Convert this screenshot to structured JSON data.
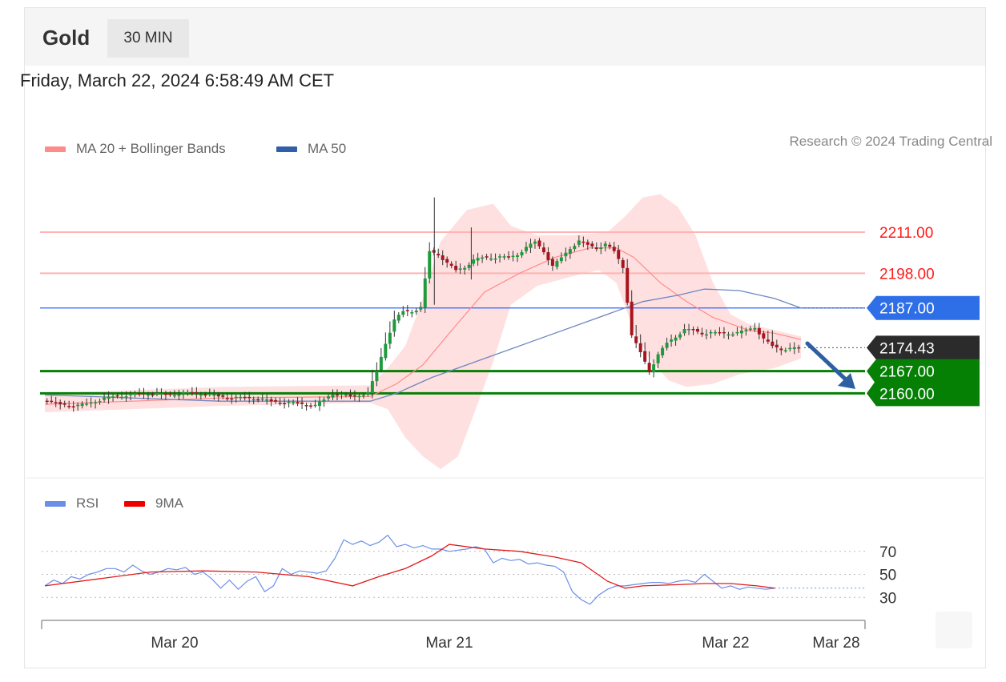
{
  "header": {
    "title": "Gold",
    "timeframe": "30 MIN"
  },
  "timestamp": "Friday, March 22, 2024 6:58:49 AM CET",
  "legend_main": [
    {
      "label": "MA 20 + Bollinger Bands",
      "color": "#ff8a8a"
    },
    {
      "label": "MA 50",
      "color": "#2e5fa8"
    }
  ],
  "copyright": "Research © 2024 Trading Central",
  "legend_rsi": [
    {
      "label": "RSI",
      "color": "#6b8fe8"
    },
    {
      "label": "9MA",
      "color": "#ee0000"
    }
  ],
  "chart_data": [
    {
      "type": "candlestick",
      "y_range": [
        2135,
        2230
      ],
      "x_labels": [
        "Mar 20",
        "Mar 21",
        "Mar 22",
        "Mar 28"
      ],
      "levels": [
        {
          "value": 2211.0,
          "label": "2211.00",
          "kind": "resistance",
          "color": "#ff0000"
        },
        {
          "value": 2198.0,
          "label": "2198.00",
          "kind": "resistance",
          "color": "#ff0000"
        },
        {
          "value": 2187.0,
          "label": "2187.00",
          "kind": "pivot",
          "color": "#2962ff"
        },
        {
          "value": 2174.43,
          "label": "2174.43",
          "kind": "last-price",
          "color": "#333333"
        },
        {
          "value": 2167.0,
          "label": "2167.00",
          "kind": "support",
          "color": "#058005"
        },
        {
          "value": 2160.0,
          "label": "2160.00",
          "kind": "support",
          "color": "#058005"
        }
      ],
      "close_profile": [
        [
          0,
          2158
        ],
        [
          2,
          2156.5
        ],
        [
          4,
          2156
        ],
        [
          6,
          2157.5
        ],
        [
          8,
          2159
        ],
        [
          10,
          2159.5
        ],
        [
          12,
          2160
        ],
        [
          14,
          2159.5
        ],
        [
          16,
          2160
        ],
        [
          18,
          2160
        ],
        [
          20,
          2159
        ],
        [
          22,
          2158.5
        ],
        [
          24,
          2158.5
        ],
        [
          26,
          2157.5
        ],
        [
          28,
          2157
        ],
        [
          30,
          2156.5
        ],
        [
          31,
          2156
        ],
        [
          32,
          2158
        ],
        [
          33,
          2160
        ],
        [
          34,
          2159.5
        ],
        [
          35,
          2159
        ],
        [
          36,
          2159.5
        ],
        [
          37,
          2160
        ],
        [
          38,
          2167
        ],
        [
          39,
          2176
        ],
        [
          40,
          2183
        ],
        [
          41,
          2186
        ],
        [
          42,
          2186
        ],
        [
          43,
          2187
        ],
        [
          44,
          2205
        ],
        [
          45,
          2204
        ],
        [
          46,
          2201
        ],
        [
          47,
          2199
        ],
        [
          48,
          2200
        ],
        [
          49,
          2202
        ],
        [
          50,
          2203
        ],
        [
          51,
          2203
        ],
        [
          52,
          2203
        ],
        [
          53,
          2203
        ],
        [
          54,
          2204
        ],
        [
          55,
          2206
        ],
        [
          56,
          2208
        ],
        [
          57,
          2205
        ],
        [
          58,
          2200
        ],
        [
          59,
          2203
        ],
        [
          60,
          2206
        ],
        [
          61,
          2208
        ],
        [
          62,
          2207
        ],
        [
          63,
          2206
        ],
        [
          64,
          2207
        ],
        [
          65,
          2205
        ],
        [
          66,
          2200
        ],
        [
          67,
          2178
        ],
        [
          68,
          2173
        ],
        [
          69,
          2167
        ],
        [
          70,
          2172
        ],
        [
          71,
          2176
        ],
        [
          72,
          2178
        ],
        [
          73,
          2180
        ],
        [
          74,
          2180
        ],
        [
          75,
          2179
        ],
        [
          76,
          2179
        ],
        [
          77,
          2179
        ],
        [
          78,
          2179
        ],
        [
          79,
          2179
        ],
        [
          80,
          2180
        ],
        [
          81,
          2181
        ],
        [
          82,
          2177
        ],
        [
          83,
          2175
        ],
        [
          84,
          2174
        ],
        [
          85,
          2174
        ],
        [
          86,
          2174.4
        ]
      ],
      "ma50": [
        [
          0,
          2159.5
        ],
        [
          20,
          2157.5
        ],
        [
          37,
          2157.5
        ],
        [
          40,
          2160
        ],
        [
          44,
          2165
        ],
        [
          50,
          2171
        ],
        [
          56,
          2177
        ],
        [
          62,
          2183
        ],
        [
          66,
          2187
        ],
        [
          68,
          2189
        ],
        [
          72,
          2191
        ],
        [
          75,
          2193
        ],
        [
          79,
          2192.5
        ],
        [
          83,
          2190
        ],
        [
          86,
          2187
        ]
      ],
      "ma20": [
        [
          0,
          2156.5
        ],
        [
          20,
          2158.5
        ],
        [
          37,
          2159
        ],
        [
          40,
          2163
        ],
        [
          43,
          2169
        ],
        [
          46,
          2179
        ],
        [
          50,
          2192
        ],
        [
          54,
          2198
        ],
        [
          58,
          2203
        ],
        [
          62,
          2206
        ],
        [
          65,
          2206
        ],
        [
          67,
          2203
        ],
        [
          70,
          2195
        ],
        [
          73,
          2189
        ],
        [
          76,
          2184
        ],
        [
          80,
          2180
        ],
        [
          83,
          2179
        ],
        [
          86,
          2177
        ]
      ],
      "bb_upper": [
        [
          0,
          2160
        ],
        [
          20,
          2162
        ],
        [
          37,
          2162.5
        ],
        [
          39,
          2168
        ],
        [
          41,
          2175
        ],
        [
          43,
          2190
        ],
        [
          45,
          2208
        ],
        [
          48,
          2218
        ],
        [
          51,
          2220
        ],
        [
          53,
          2213
        ],
        [
          56,
          2210
        ],
        [
          60,
          2210
        ],
        [
          64,
          2211
        ],
        [
          66,
          2216
        ],
        [
          68,
          2222
        ],
        [
          70,
          2223
        ],
        [
          72,
          2219
        ],
        [
          74,
          2210
        ],
        [
          76,
          2195
        ],
        [
          78,
          2185
        ],
        [
          80,
          2182
        ],
        [
          83,
          2180
        ],
        [
          86,
          2178
        ]
      ],
      "bb_lower": [
        [
          0,
          2154
        ],
        [
          20,
          2156
        ],
        [
          37,
          2157
        ],
        [
          39,
          2155
        ],
        [
          41,
          2146
        ],
        [
          43,
          2140
        ],
        [
          45,
          2136
        ],
        [
          47,
          2140
        ],
        [
          49,
          2155
        ],
        [
          51,
          2170
        ],
        [
          53,
          2188
        ],
        [
          56,
          2194
        ],
        [
          60,
          2197
        ],
        [
          63,
          2199
        ],
        [
          65,
          2195
        ],
        [
          67,
          2180
        ],
        [
          69,
          2170
        ],
        [
          71,
          2164
        ],
        [
          73,
          2162
        ],
        [
          76,
          2163
        ],
        [
          79,
          2166
        ],
        [
          83,
          2168
        ],
        [
          86,
          2171
        ]
      ]
    },
    {
      "type": "line",
      "title": "RSI",
      "yticks": [
        70,
        50,
        30
      ],
      "y_range": [
        10,
        90
      ],
      "series": [
        {
          "name": "RSI",
          "values": [
            [
              0,
              40
            ],
            [
              1,
              45
            ],
            [
              2,
              42
            ],
            [
              3,
              48
            ],
            [
              4,
              46
            ],
            [
              5,
              50
            ],
            [
              6,
              52
            ],
            [
              7,
              55
            ],
            [
              8,
              55
            ],
            [
              9,
              52
            ],
            [
              10,
              58
            ],
            [
              11,
              53
            ],
            [
              12,
              50
            ],
            [
              13,
              52
            ],
            [
              14,
              55
            ],
            [
              15,
              54
            ],
            [
              16,
              56
            ],
            [
              17,
              50
            ],
            [
              18,
              52
            ],
            [
              19,
              46
            ],
            [
              20,
              38
            ],
            [
              21,
              45
            ],
            [
              22,
              37
            ],
            [
              23,
              44
            ],
            [
              24,
              48
            ],
            [
              25,
              35
            ],
            [
              26,
              40
            ],
            [
              27,
              55
            ],
            [
              28,
              50
            ],
            [
              29,
              53
            ],
            [
              30,
              52
            ],
            [
              31,
              51
            ],
            [
              32,
              53
            ],
            [
              33,
              64
            ],
            [
              34,
              80
            ],
            [
              35,
              76
            ],
            [
              36,
              79
            ],
            [
              37,
              75
            ],
            [
              38,
              78
            ],
            [
              39,
              84
            ],
            [
              40,
              74
            ],
            [
              41,
              76
            ],
            [
              42,
              73
            ],
            [
              43,
              75
            ],
            [
              44,
              72
            ],
            [
              45,
              72
            ],
            [
              46,
              70
            ],
            [
              47,
              71
            ],
            [
              48,
              72
            ],
            [
              49,
              74
            ],
            [
              50,
              72
            ],
            [
              51,
              60
            ],
            [
              52,
              64
            ],
            [
              53,
              62
            ],
            [
              54,
              63
            ],
            [
              55,
              59
            ],
            [
              56,
              60
            ],
            [
              57,
              58
            ],
            [
              58,
              57
            ],
            [
              59,
              52
            ],
            [
              60,
              35
            ],
            [
              61,
              28
            ],
            [
              62,
              24
            ],
            [
              63,
              32
            ],
            [
              64,
              37
            ],
            [
              65,
              40
            ],
            [
              66,
              40
            ],
            [
              67,
              41
            ],
            [
              68,
              42
            ],
            [
              69,
              43
            ],
            [
              70,
              43
            ],
            [
              71,
              42
            ],
            [
              72,
              44
            ],
            [
              73,
              45
            ],
            [
              74,
              43
            ],
            [
              75,
              50
            ],
            [
              76,
              44
            ],
            [
              77,
              38
            ],
            [
              78,
              40
            ],
            [
              79,
              37
            ],
            [
              80,
              39
            ],
            [
              81,
              38
            ],
            [
              82,
              37
            ],
            [
              83,
              38
            ]
          ]
        },
        {
          "name": "9MA",
          "values": [
            [
              0,
              40
            ],
            [
              6,
              46
            ],
            [
              12,
              52
            ],
            [
              18,
              53
            ],
            [
              24,
              52
            ],
            [
              30,
              48
            ],
            [
              35,
              40
            ],
            [
              38,
              48
            ],
            [
              41,
              55
            ],
            [
              44,
              66
            ],
            [
              46,
              76
            ],
            [
              50,
              72
            ],
            [
              54,
              70
            ],
            [
              58,
              65
            ],
            [
              61,
              60
            ],
            [
              64,
              44
            ],
            [
              66,
              38
            ],
            [
              68,
              40
            ],
            [
              72,
              41
            ],
            [
              75,
              42
            ],
            [
              78,
              42
            ],
            [
              81,
              40
            ],
            [
              83,
              38
            ]
          ]
        }
      ]
    }
  ]
}
